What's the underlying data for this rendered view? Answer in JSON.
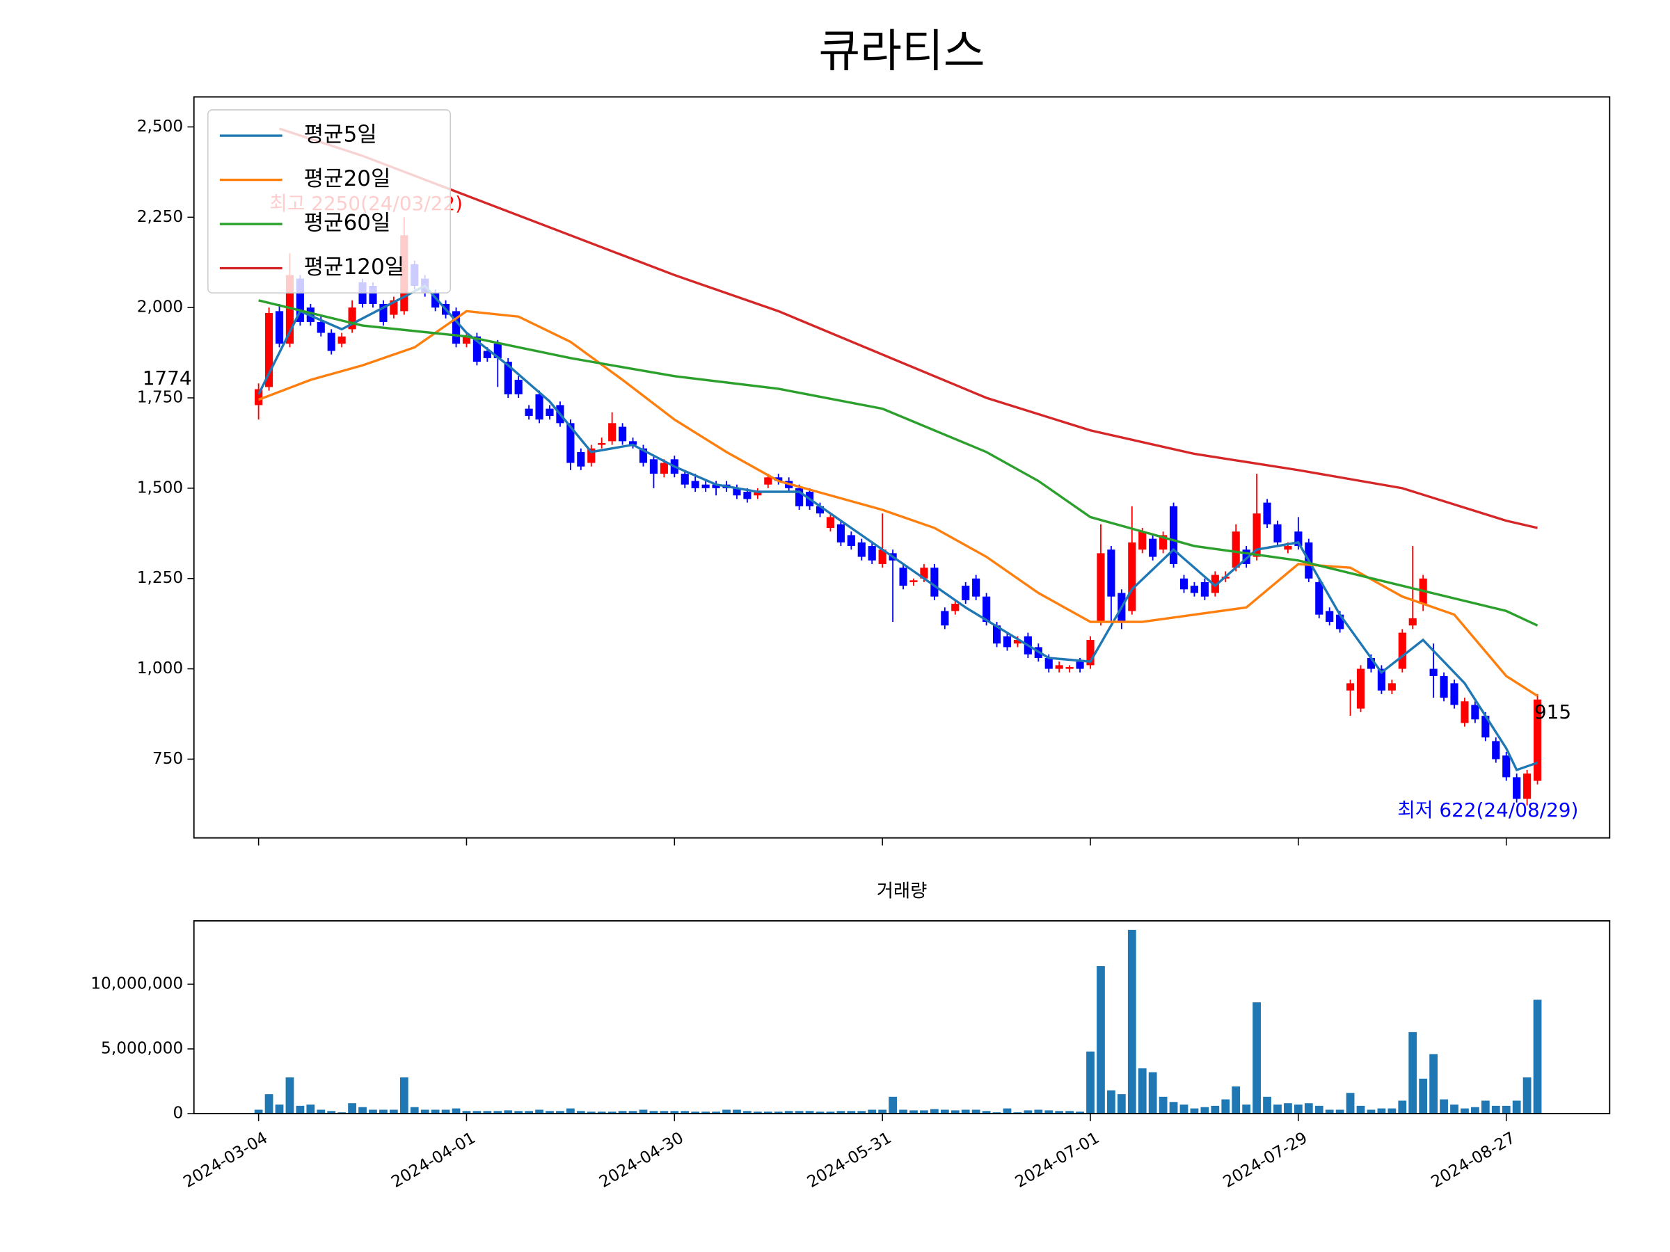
{
  "chart_data": [
    {
      "type": "candlestick",
      "title": "큐라티스",
      "open": [
        1730,
        1780,
        1990,
        1900,
        2080,
        2000,
        1960,
        1930,
        1900,
        1940,
        2070,
        2060,
        2010,
        1980,
        1990,
        2120,
        2080,
        2040,
        2010,
        1990,
        1900,
        1920,
        1880,
        1900,
        1850,
        1800,
        1720,
        1760,
        1720,
        1730,
        1680,
        1600,
        1570,
        1620,
        1630,
        1670,
        1630,
        1610,
        1580,
        1540,
        1580,
        1540,
        1520,
        1510,
        1510,
        1510,
        1500,
        1490,
        1480,
        1510,
        1530,
        1520,
        1500,
        1490,
        1450,
        1390,
        1400,
        1370,
        1350,
        1340,
        1290,
        1320,
        1280,
        1240,
        1250,
        1280,
        1160,
        1160,
        1230,
        1250,
        1200,
        1120,
        1090,
        1070,
        1090,
        1060,
        1030,
        1000,
        1000,
        1020,
        1010,
        1130,
        1330,
        1210,
        1160,
        1330,
        1360,
        1330,
        1450,
        1250,
        1230,
        1240,
        1210,
        1250,
        1280,
        1330,
        1310,
        1460,
        1400,
        1330,
        1380,
        1350,
        1240,
        1160,
        1150,
        940,
        890,
        1030,
        1000,
        940,
        1000,
        1120,
        1180,
        1000,
        980,
        960,
        850,
        900,
        870,
        800,
        760,
        700,
        640,
        690
      ],
      "high": [
        1790,
        2000,
        2010,
        2150,
        2090,
        2010,
        1980,
        1940,
        1930,
        2020,
        2080,
        2070,
        2020,
        2030,
        2250,
        2130,
        2090,
        2050,
        2020,
        2000,
        1930,
        1930,
        1890,
        1910,
        1860,
        1810,
        1730,
        1770,
        1730,
        1740,
        1690,
        1610,
        1620,
        1640,
        1710,
        1680,
        1640,
        1620,
        1590,
        1580,
        1590,
        1550,
        1540,
        1520,
        1520,
        1520,
        1510,
        1500,
        1500,
        1540,
        1540,
        1530,
        1510,
        1500,
        1460,
        1430,
        1410,
        1380,
        1360,
        1350,
        1430,
        1330,
        1290,
        1250,
        1290,
        1290,
        1170,
        1190,
        1240,
        1260,
        1210,
        1130,
        1100,
        1090,
        1100,
        1070,
        1040,
        1020,
        1010,
        1030,
        1090,
        1400,
        1340,
        1220,
        1450,
        1390,
        1370,
        1380,
        1460,
        1260,
        1240,
        1250,
        1270,
        1270,
        1400,
        1340,
        1540,
        1470,
        1410,
        1350,
        1420,
        1360,
        1250,
        1170,
        1160,
        970,
        1010,
        1040,
        1010,
        970,
        1110,
        1340,
        1260,
        1070,
        990,
        970,
        920,
        910,
        880,
        810,
        770,
        710,
        720,
        930
      ],
      "low": [
        1690,
        1770,
        1890,
        1890,
        1950,
        1950,
        1920,
        1870,
        1890,
        1930,
        2000,
        2000,
        1950,
        1970,
        1980,
        2050,
        2030,
        1990,
        1970,
        1890,
        1890,
        1840,
        1850,
        1780,
        1750,
        1750,
        1690,
        1680,
        1690,
        1670,
        1550,
        1550,
        1560,
        1610,
        1620,
        1620,
        1610,
        1560,
        1500,
        1530,
        1530,
        1500,
        1490,
        1490,
        1480,
        1490,
        1470,
        1460,
        1470,
        1500,
        1510,
        1490,
        1440,
        1440,
        1420,
        1380,
        1340,
        1330,
        1300,
        1290,
        1280,
        1130,
        1220,
        1230,
        1240,
        1190,
        1110,
        1150,
        1180,
        1190,
        1120,
        1060,
        1050,
        1060,
        1030,
        1020,
        990,
        990,
        990,
        990,
        1000,
        1120,
        1130,
        1110,
        1150,
        1320,
        1300,
        1320,
        1280,
        1210,
        1200,
        1190,
        1200,
        1240,
        1270,
        1280,
        1300,
        1390,
        1340,
        1320,
        1330,
        1240,
        1140,
        1120,
        1100,
        870,
        880,
        990,
        930,
        930,
        990,
        1110,
        1160,
        920,
        910,
        890,
        840,
        850,
        800,
        740,
        690,
        630,
        622,
        680
      ],
      "close": [
        1774,
        1985,
        1900,
        2090,
        1960,
        1960,
        1930,
        1880,
        1920,
        2000,
        2010,
        2010,
        1960,
        2020,
        2200,
        2060,
        2040,
        2000,
        1980,
        1900,
        1920,
        1850,
        1860,
        1860,
        1760,
        1760,
        1700,
        1690,
        1700,
        1680,
        1570,
        1560,
        1610,
        1625,
        1680,
        1630,
        1620,
        1570,
        1540,
        1570,
        1540,
        1510,
        1500,
        1500,
        1500,
        1500,
        1480,
        1470,
        1490,
        1530,
        1520,
        1500,
        1450,
        1450,
        1430,
        1420,
        1350,
        1340,
        1310,
        1300,
        1330,
        1300,
        1230,
        1245,
        1280,
        1200,
        1120,
        1180,
        1190,
        1200,
        1130,
        1070,
        1060,
        1080,
        1040,
        1030,
        1000,
        1010,
        1005,
        1000,
        1080,
        1320,
        1200,
        1130,
        1350,
        1380,
        1310,
        1370,
        1290,
        1220,
        1210,
        1200,
        1260,
        1255,
        1380,
        1290,
        1430,
        1400,
        1350,
        1340,
        1340,
        1250,
        1150,
        1130,
        1110,
        960,
        1000,
        1000,
        940,
        960,
        1100,
        1140,
        1250,
        980,
        920,
        900,
        910,
        860,
        810,
        750,
        700,
        640,
        710,
        915
      ],
      "up_color": "#ff0000",
      "down_color": "#0000ff",
      "series": [
        {
          "name": "평균5일",
          "color": "#1f77b4",
          "x": [
            0,
            4,
            8,
            12,
            16,
            20,
            24,
            28,
            32,
            36,
            40,
            44,
            48,
            52,
            56,
            60,
            64,
            68,
            72,
            76,
            80,
            84,
            88,
            92,
            96,
            100,
            104,
            108,
            112,
            116,
            120,
            121,
            123
          ],
          "values": [
            1760,
            1990,
            1940,
            2000,
            2060,
            1930,
            1840,
            1740,
            1600,
            1620,
            1560,
            1510,
            1490,
            1490,
            1410,
            1330,
            1250,
            1170,
            1100,
            1030,
            1020,
            1220,
            1330,
            1230,
            1330,
            1350,
            1150,
            990,
            1080,
            960,
            780,
            720,
            740
          ]
        },
        {
          "name": "평균20일",
          "color": "#ff7f0e",
          "x": [
            0,
            5,
            10,
            15,
            20,
            25,
            30,
            35,
            40,
            45,
            50,
            55,
            60,
            65,
            70,
            75,
            80,
            85,
            90,
            95,
            100,
            105,
            110,
            115,
            120,
            123
          ],
          "values": [
            1745,
            1800,
            1840,
            1890,
            1990,
            1975,
            1905,
            1800,
            1690,
            1600,
            1520,
            1480,
            1440,
            1390,
            1310,
            1210,
            1130,
            1130,
            1150,
            1170,
            1290,
            1280,
            1200,
            1150,
            980,
            925
          ]
        },
        {
          "name": "평균60일",
          "color": "#2ca02c",
          "x": [
            0,
            10,
            20,
            30,
            40,
            50,
            60,
            70,
            75,
            80,
            90,
            100,
            110,
            120,
            123
          ],
          "values": [
            2020,
            1950,
            1920,
            1860,
            1810,
            1775,
            1720,
            1600,
            1520,
            1420,
            1340,
            1300,
            1230,
            1160,
            1120
          ]
        },
        {
          "name": "평균120일",
          "color": "#d62728",
          "x": [
            2,
            10,
            20,
            30,
            40,
            50,
            60,
            70,
            80,
            90,
            100,
            110,
            120,
            123
          ],
          "values": [
            2495,
            2420,
            2310,
            2200,
            2090,
            1990,
            1870,
            1750,
            1660,
            1595,
            1550,
            1500,
            1410,
            1390
          ]
        }
      ],
      "annotations": [
        "최고 2250(24/03/22)",
        "최저 622(24/08/29)",
        "1774",
        "915"
      ],
      "annotation_colors": [
        "#ff0000",
        "#0000ff",
        "#000000",
        "#000000"
      ],
      "ylim": [
        532,
        2583
      ],
      "yticks": [
        750,
        {
          "value": 1000,
          "label": "1,000"
        },
        {
          "value": 1250,
          "label": "1,250"
        },
        {
          "value": 1500,
          "label": "1,500"
        },
        {
          "value": 1750,
          "label": "1,750"
        },
        {
          "value": 2000,
          "label": "2,000"
        },
        {
          "value": 2250,
          "label": "2,250"
        },
        {
          "value": 2500,
          "label": "2,500"
        }
      ],
      "legend": "upper left",
      "grid": false
    },
    {
      "type": "bar",
      "title": "거래량",
      "color": "#1f77b4",
      "categories": [
        "2024-03-04",
        null,
        null,
        null,
        null,
        null,
        null,
        null,
        null,
        null,
        null,
        null,
        null,
        null,
        null,
        null,
        null,
        null,
        null,
        null,
        "2024-04-01",
        null,
        null,
        null,
        null,
        null,
        null,
        null,
        null,
        null,
        null,
        null,
        null,
        null,
        null,
        null,
        null,
        null,
        null,
        null,
        "2024-04-30",
        null,
        null,
        null,
        null,
        null,
        null,
        null,
        null,
        null,
        null,
        null,
        null,
        null,
        null,
        null,
        null,
        null,
        null,
        null,
        "2024-05-31",
        null,
        null,
        null,
        null,
        null,
        null,
        null,
        null,
        null,
        null,
        null,
        null,
        null,
        null,
        null,
        null,
        null,
        null,
        null,
        "2024-07-01",
        null,
        null,
        null,
        null,
        null,
        null,
        null,
        null,
        null,
        null,
        null,
        null,
        null,
        null,
        null,
        null,
        null,
        null,
        null,
        "2024-07-29",
        null,
        null,
        null,
        null,
        null,
        null,
        null,
        null,
        null,
        null,
        null,
        null,
        null,
        null,
        null,
        null,
        null,
        null,
        null,
        "2024-08-27",
        null,
        null,
        null
      ],
      "values": [
        300000,
        1500000,
        700000,
        2800000,
        600000,
        700000,
        300000,
        200000,
        100000,
        800000,
        500000,
        300000,
        300000,
        300000,
        2800000,
        500000,
        300000,
        300000,
        300000,
        400000,
        200000,
        200000,
        200000,
        200000,
        250000,
        200000,
        200000,
        300000,
        200000,
        200000,
        400000,
        200000,
        150000,
        150000,
        150000,
        200000,
        200000,
        300000,
        200000,
        200000,
        200000,
        200000,
        150000,
        150000,
        150000,
        300000,
        300000,
        200000,
        150000,
        150000,
        150000,
        200000,
        200000,
        200000,
        150000,
        150000,
        200000,
        200000,
        200000,
        300000,
        300000,
        1300000,
        300000,
        250000,
        250000,
        350000,
        300000,
        250000,
        300000,
        300000,
        200000,
        100000,
        400000,
        100000,
        250000,
        300000,
        250000,
        200000,
        200000,
        150000,
        4800000,
        11400000,
        1800000,
        1500000,
        14200000,
        3500000,
        3200000,
        1300000,
        900000,
        700000,
        400000,
        500000,
        600000,
        1100000,
        2100000,
        700000,
        8600000,
        1300000,
        700000,
        800000,
        700000,
        800000,
        600000,
        300000,
        300000,
        1600000,
        600000,
        300000,
        400000,
        400000,
        1000000,
        6300000,
        2700000,
        4600000,
        1100000,
        700000,
        400000,
        500000,
        1000000,
        600000,
        600000,
        1000000,
        2800000,
        8800000
      ],
      "ylim": [
        0,
        14900000
      ],
      "yticks": [
        0,
        {
          "value": 5000000,
          "label": "5,000,000"
        },
        {
          "value": 10000000,
          "label": "10,000,000"
        }
      ]
    }
  ]
}
